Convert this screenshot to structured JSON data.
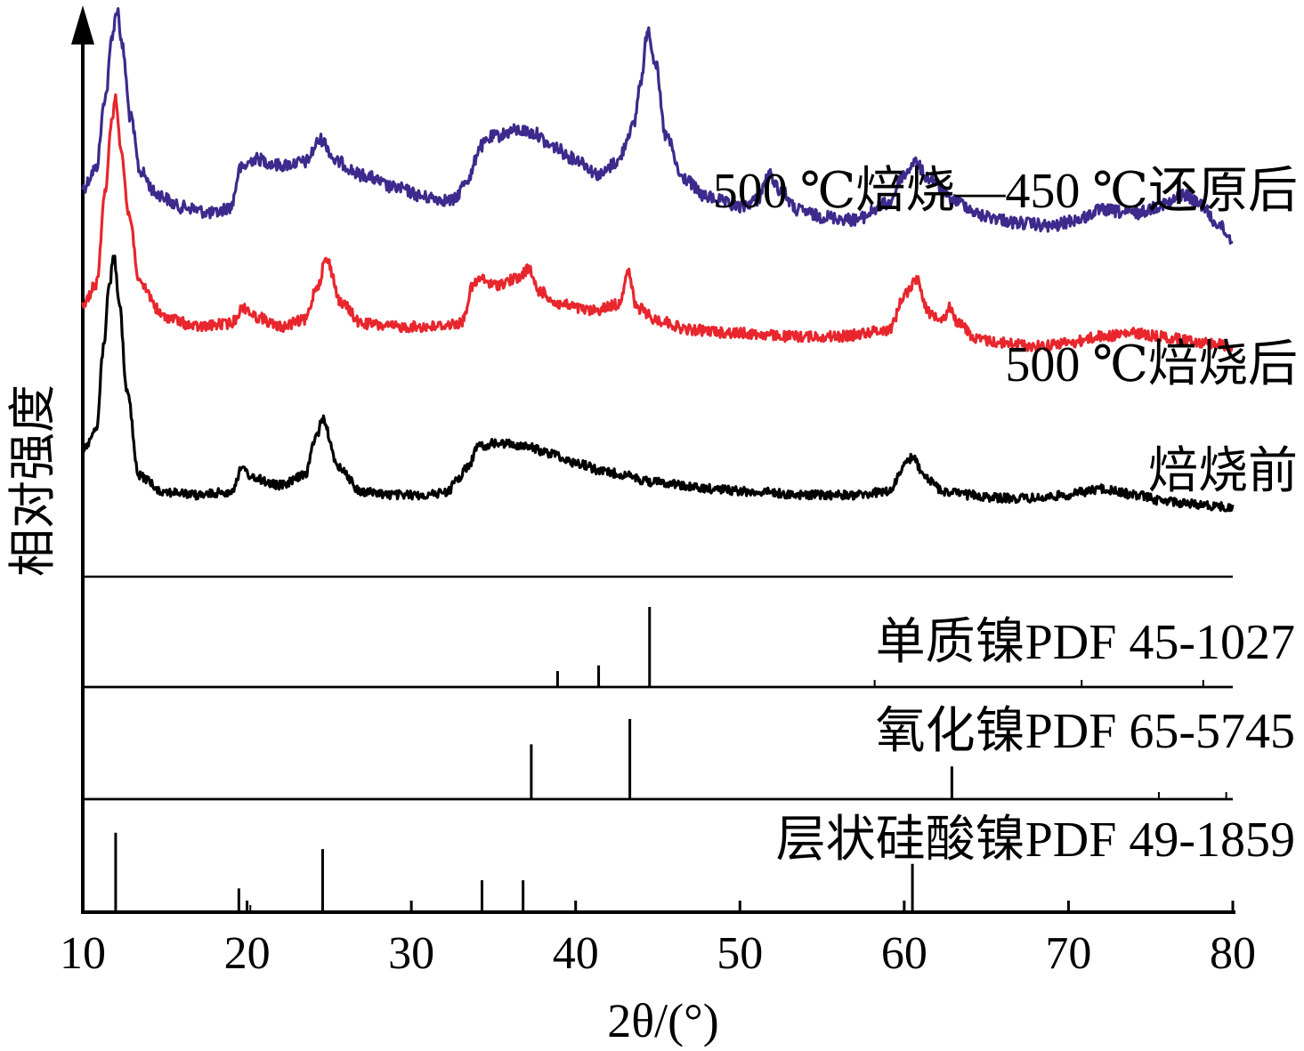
{
  "chart_data": {
    "type": "line",
    "title": "",
    "xlabel": "2θ/(°)",
    "ylabel": "相对强度",
    "xlim": [
      10,
      80
    ],
    "xticks": [
      10,
      20,
      30,
      40,
      50,
      60,
      70,
      80
    ],
    "grid": false,
    "colors": {
      "calcined_reduced": "#3d2a8c",
      "calcined": "#e8262d",
      "before": "#000000",
      "axis": "#000000"
    },
    "series": [
      {
        "name": "500 ℃焙烧—450 ℃还原后",
        "color": "#3d2a8c",
        "x": [
          10,
          10.8,
          11.4,
          11.8,
          12.1,
          12.4,
          12.9,
          13.5,
          14.5,
          16,
          18,
          19,
          19.6,
          20.5,
          22,
          23.5,
          24.5,
          25.5,
          27,
          29,
          31,
          32.5,
          33.5,
          34.2,
          35,
          36.5,
          37.5,
          38.5,
          40,
          41.5,
          42.5,
          43.5,
          44,
          44.4,
          44.8,
          45.5,
          46.5,
          48,
          50,
          51,
          51.8,
          52.5,
          53.5,
          55,
          57,
          59,
          60,
          60.6,
          61.5,
          63,
          65,
          67,
          69,
          70.5,
          72,
          74,
          76,
          77,
          78,
          79,
          80
        ],
        "y": [
          4.0,
          4.6,
          6.9,
          8.8,
          9.6,
          8.4,
          6.2,
          4.5,
          3.8,
          3.4,
          3.2,
          3.4,
          4.6,
          4.9,
          4.7,
          4.8,
          5.5,
          4.8,
          4.4,
          4.0,
          3.7,
          3.6,
          4.3,
          5.3,
          5.6,
          5.8,
          5.7,
          5.3,
          4.9,
          4.4,
          4.8,
          5.9,
          7.4,
          9.0,
          8.0,
          5.6,
          4.3,
          3.7,
          3.4,
          3.6,
          4.4,
          3.9,
          3.3,
          3.1,
          3.0,
          3.5,
          4.4,
          4.8,
          4.3,
          3.6,
          3.1,
          2.9,
          2.8,
          3.0,
          3.3,
          3.2,
          3.5,
          3.8,
          3.5,
          2.9,
          2.4
        ]
      },
      {
        "name": "500 ℃焙烧后",
        "color": "#e8262d",
        "x": [
          10,
          10.8,
          11.4,
          11.7,
          12.0,
          12.3,
          12.8,
          13.5,
          15,
          17,
          19,
          19.8,
          20.6,
          22,
          23.5,
          24.3,
          24.8,
          25.8,
          27,
          29,
          31,
          33,
          33.8,
          34.2,
          35,
          36.5,
          37.1,
          37.8,
          39,
          41,
          42.6,
          43.2,
          43.7,
          45,
          47,
          50,
          53,
          56,
          59,
          60.2,
          60.7,
          61.6,
          62.4,
          62.8,
          63.3,
          64.5,
          66,
          68,
          70,
          72,
          74,
          75.5,
          77,
          78.5,
          80
        ],
        "y": [
          3.0,
          3.6,
          6.5,
          8.6,
          9.4,
          8.0,
          5.8,
          3.6,
          2.6,
          2.3,
          2.4,
          2.9,
          2.6,
          2.3,
          2.5,
          3.6,
          4.4,
          3.0,
          2.4,
          2.3,
          2.3,
          2.4,
          3.6,
          3.8,
          3.6,
          3.8,
          4.1,
          3.4,
          3.0,
          2.8,
          3.0,
          4.0,
          2.9,
          2.5,
          2.2,
          2.1,
          2.0,
          2.0,
          2.2,
          3.4,
          3.8,
          2.7,
          2.6,
          2.9,
          2.4,
          1.9,
          1.8,
          1.7,
          1.8,
          2.0,
          2.1,
          2.0,
          1.9,
          1.8,
          1.7
        ]
      },
      {
        "name": "焙烧前",
        "color": "#000000",
        "x": [
          10,
          10.8,
          11.3,
          11.6,
          11.9,
          12.2,
          12.7,
          13.4,
          15,
          17,
          19,
          19.7,
          20.5,
          22,
          23.5,
          24.2,
          24.6,
          25.5,
          27,
          29,
          31,
          32.2,
          32.8,
          33.5,
          34,
          35,
          36,
          37,
          38.5,
          40,
          42,
          45,
          48,
          51,
          54,
          57,
          59,
          60.2,
          60.5,
          61.3,
          62.5,
          64,
          66,
          68,
          70,
          71,
          72,
          73,
          74,
          76,
          78,
          80
        ],
        "y": [
          2.2,
          2.8,
          5.5,
          7.3,
          8.3,
          6.8,
          4.0,
          1.4,
          0.9,
          0.8,
          0.9,
          1.6,
          1.3,
          1.1,
          1.4,
          2.6,
          3.2,
          1.7,
          0.9,
          0.8,
          0.8,
          0.9,
          1.3,
          1.7,
          2.3,
          2.4,
          2.4,
          2.3,
          2.1,
          1.8,
          1.5,
          1.2,
          1.0,
          0.9,
          0.8,
          0.8,
          0.9,
          1.8,
          2.0,
          1.3,
          0.9,
          0.8,
          0.7,
          0.7,
          0.8,
          0.9,
          1.0,
          0.9,
          0.8,
          0.6,
          0.5,
          0.4
        ]
      }
    ],
    "reference_panels": [
      {
        "name": "单质镍PDF 45-1027",
        "peaks": [
          {
            "x": 38.9,
            "rel": 0.2
          },
          {
            "x": 41.4,
            "rel": 0.27
          },
          {
            "x": 44.5,
            "rel": 1.0
          }
        ],
        "minor_ticks": [
          58.2,
          70.8,
          78.2
        ]
      },
      {
        "name": "氧化镍PDF 65-5745",
        "peaks": [
          {
            "x": 37.3,
            "rel": 0.67
          },
          {
            "x": 43.3,
            "rel": 0.98
          },
          {
            "x": 62.9,
            "rel": 0.4
          }
        ],
        "minor_ticks": [
          75.5,
          79.6
        ]
      },
      {
        "name": "层状硅酸镍PDF 49-1859",
        "peaks": [
          {
            "x": 12.0,
            "rel": 0.97
          },
          {
            "x": 19.5,
            "rel": 0.29
          },
          {
            "x": 24.6,
            "rel": 0.77
          },
          {
            "x": 34.3,
            "rel": 0.39
          },
          {
            "x": 36.8,
            "rel": 0.39
          },
          {
            "x": 60.5,
            "rel": 0.59
          }
        ],
        "minor_ticks": [
          20.2
        ]
      }
    ]
  }
}
